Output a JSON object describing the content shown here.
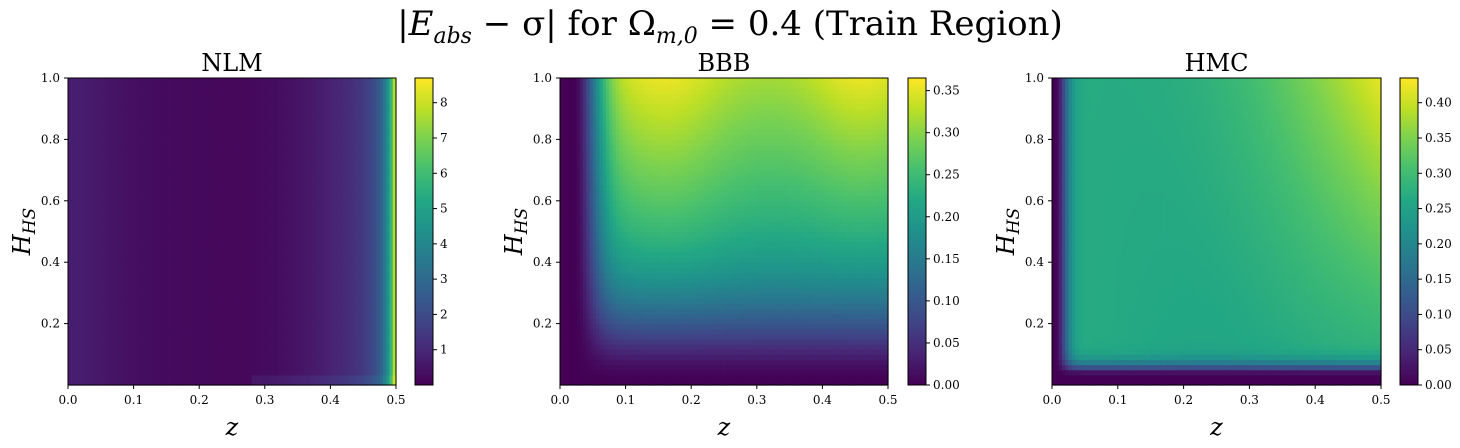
{
  "figure": {
    "title": {
      "lhs_expression": "|E",
      "lhs_subscript": "abs",
      "minus_sigma": " − σ| for ",
      "omega": "Ω",
      "omega_subscript": "m,0",
      "rest": " = 0.4 (Train Region)"
    }
  },
  "chart_data": [
    {
      "type": "heatmap",
      "title": "NLM",
      "xlabel": "z",
      "ylabel_main": "H",
      "ylabel_sub": "HS",
      "xlim": [
        0.0,
        0.5
      ],
      "ylim": [
        0.0,
        1.0
      ],
      "x_ticks": [
        "0.0",
        "0.1",
        "0.2",
        "0.3",
        "0.4",
        "0.5"
      ],
      "y_ticks": [
        "0.2",
        "0.4",
        "0.6",
        "0.8",
        "1.0"
      ],
      "colorbar_range": [
        0.0,
        8.7
      ],
      "colorbar_ticks": [
        "1",
        "2",
        "3",
        "4",
        "5",
        "6",
        "7",
        "8"
      ],
      "colormap": "viridis",
      "pattern": "low values (~0.1–1) across most of the domain, minimum near z≈0.25 and near z≈0.12 at low H; rising steeply toward z=0.5 where values reach ~8.5"
    },
    {
      "type": "heatmap",
      "title": "BBB",
      "xlabel": "z",
      "ylabel_main": "H",
      "ylabel_sub": "HS",
      "xlim": [
        0.0,
        0.5
      ],
      "ylim": [
        0.0,
        1.0
      ],
      "x_ticks": [
        "0.0",
        "0.1",
        "0.2",
        "0.3",
        "0.4",
        "0.5"
      ],
      "y_ticks": [
        "0.2",
        "0.4",
        "0.6",
        "0.8",
        "1.0"
      ],
      "colorbar_range": [
        0.0,
        0.365
      ],
      "colorbar_ticks": [
        "0.00",
        "0.05",
        "0.10",
        "0.15",
        "0.20",
        "0.25",
        "0.30",
        "0.35"
      ],
      "colormap": "viridis",
      "pattern": "near 0 for z<0.04 and H<0.05; values grow with H, highest (~0.35) near H≈1 and z≈0.45; a broad ~0.33 band near z≈0.15 at high H"
    },
    {
      "type": "heatmap",
      "title": "HMC",
      "xlabel": "z",
      "ylabel_main": "H",
      "ylabel_sub": "HS",
      "xlim": [
        0.0,
        0.5
      ],
      "ylim": [
        0.0,
        1.0
      ],
      "x_ticks": [
        "0.0",
        "0.1",
        "0.2",
        "0.3",
        "0.4",
        "0.5"
      ],
      "y_ticks": [
        "0.2",
        "0.4",
        "0.6",
        "0.8",
        "1.0"
      ],
      "colorbar_range": [
        0.0,
        0.435
      ],
      "colorbar_ticks": [
        "0.00",
        "0.05",
        "0.10",
        "0.15",
        "0.20",
        "0.25",
        "0.30",
        "0.35",
        "0.40"
      ],
      "colormap": "viridis",
      "pattern": "near 0 for z<0.01 and H<0.04; plateau ~0.26–0.29 over most of the domain; rising to ~0.42 at top right (z≈0.48, H≈1)"
    }
  ]
}
